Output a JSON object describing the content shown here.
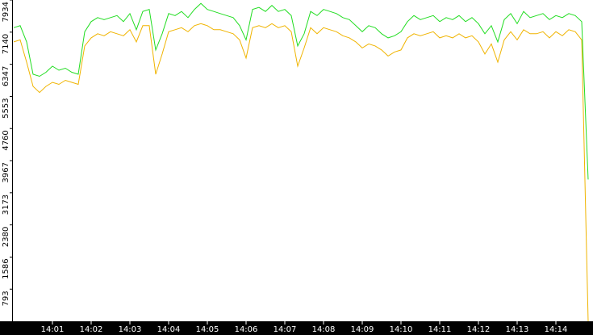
{
  "chart_data": {
    "type": "line",
    "categories": [
      null,
      null,
      null,
      null,
      null,
      null,
      "14:01",
      null,
      null,
      null,
      null,
      null,
      "14:02",
      null,
      null,
      null,
      null,
      null,
      "14:03",
      null,
      null,
      null,
      null,
      null,
      "14:04",
      null,
      null,
      null,
      null,
      null,
      "14:05",
      null,
      null,
      null,
      null,
      null,
      "14:06",
      null,
      null,
      null,
      null,
      null,
      "14:07",
      null,
      null,
      null,
      null,
      null,
      "14:08",
      null,
      null,
      null,
      null,
      null,
      "14:09",
      null,
      null,
      null,
      null,
      null,
      "14:10",
      null,
      null,
      null,
      null,
      null,
      "14:11",
      null,
      null,
      null,
      null,
      null,
      "14:12",
      null,
      null,
      null,
      null,
      null,
      "14:13",
      null,
      null,
      null,
      null,
      null,
      "14:14",
      null,
      null,
      null,
      null,
      null
    ],
    "series": [
      {
        "color": "#22dd22",
        "values": [
          7250,
          7300,
          6900,
          6100,
          6050,
          6150,
          6300,
          6200,
          6250,
          6150,
          6100,
          7150,
          7400,
          7500,
          7450,
          7500,
          7550,
          7400,
          7600,
          7200,
          7650,
          7700,
          6700,
          7100,
          7600,
          7550,
          7650,
          7500,
          7700,
          7850,
          7700,
          7650,
          7600,
          7550,
          7500,
          7300,
          6950,
          7700,
          7750,
          7650,
          7800,
          7650,
          7700,
          7550,
          6800,
          7100,
          7650,
          7550,
          7700,
          7650,
          7600,
          7500,
          7450,
          7300,
          7150,
          7300,
          7250,
          7100,
          7000,
          7050,
          7150,
          7400,
          7550,
          7450,
          7500,
          7550,
          7400,
          7500,
          7450,
          7550,
          7400,
          7500,
          7350,
          7100,
          7300,
          6900,
          7450,
          7600,
          7350,
          7650,
          7500,
          7550,
          7600,
          7450,
          7550,
          7500,
          7600,
          7550,
          7400,
          3500
        ]
      },
      {
        "color": "#f0b400",
        "values": [
          6900,
          6950,
          6400,
          5800,
          5650,
          5800,
          5900,
          5850,
          5950,
          5900,
          5850,
          6800,
          7000,
          7100,
          7050,
          7150,
          7100,
          7050,
          7200,
          6900,
          7300,
          7300,
          6100,
          6600,
          7150,
          7200,
          7250,
          7150,
          7300,
          7350,
          7300,
          7200,
          7200,
          7150,
          7100,
          6950,
          6500,
          7250,
          7300,
          7250,
          7350,
          7250,
          7300,
          7150,
          6300,
          6750,
          7250,
          7100,
          7250,
          7200,
          7150,
          7050,
          7000,
          6900,
          6750,
          6850,
          6800,
          6700,
          6550,
          6650,
          6700,
          7000,
          7100,
          7050,
          7100,
          7150,
          7000,
          7050,
          7000,
          7100,
          7000,
          7050,
          6900,
          6600,
          6850,
          6400,
          6950,
          7150,
          6950,
          7200,
          7100,
          7100,
          7150,
          7000,
          7150,
          7050,
          7200,
          7150,
          6950,
          0
        ]
      }
    ],
    "ylim": [
      0,
      7934
    ],
    "yticks": [
      793,
      1586,
      2380,
      3173,
      3967,
      4760,
      5553,
      6347,
      7140,
      7934
    ]
  }
}
